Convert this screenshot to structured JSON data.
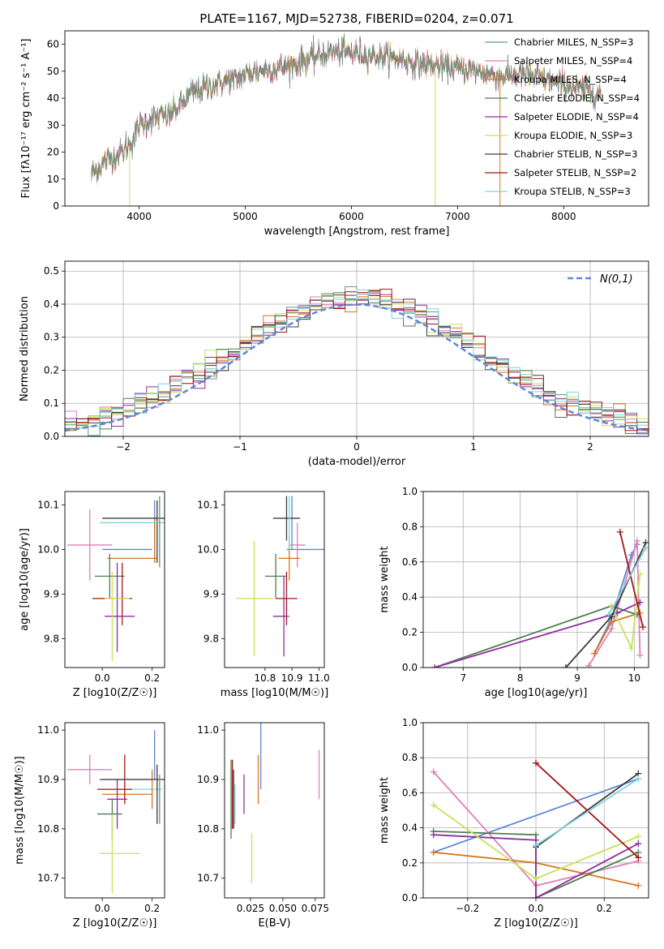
{
  "figure_title": "PLATE=1167, MJD=52738, FIBERID=0204, z=0.071",
  "colors": {
    "chabrier_miles": "#5b9f7e",
    "salpeter_miles": "#e07fb8",
    "kroupa_miles": "#d4761c",
    "chabrier_elodie": "#4f7d52",
    "salpeter_elodie": "#8f2da0",
    "kroupa_elodie": "#c6e25a",
    "chabrier_stelib": "#3d3d3d",
    "salpeter_stelib": "#a41616",
    "kroupa_stelib": "#7fd2dc",
    "extra_blue": "#5f86d6",
    "normal_curve": "#5f86d6"
  },
  "chart_data": [
    {
      "type": "line",
      "id": "spectrum",
      "xlabel": "wavelength [Angstrom, rest frame]",
      "ylabel": "Flux [fλ10⁻¹⁷ erg cm⁻² s⁻¹ A⁻¹]",
      "xlim": [
        3300,
        8800
      ],
      "ylim": [
        0,
        65
      ],
      "xticks": [
        4000,
        5000,
        6000,
        7000,
        8000
      ],
      "yticks": [
        0,
        10,
        20,
        30,
        40,
        50,
        60
      ],
      "x_range": [
        3550,
        8350
      ],
      "continuum_points": [
        [
          3550,
          12
        ],
        [
          3700,
          17
        ],
        [
          3850,
          20
        ],
        [
          3950,
          25
        ],
        [
          4000,
          30
        ],
        [
          4100,
          32
        ],
        [
          4300,
          34
        ],
        [
          4500,
          42
        ],
        [
          4700,
          45
        ],
        [
          4900,
          47
        ],
        [
          5100,
          50
        ],
        [
          5300,
          51
        ],
        [
          5500,
          53
        ],
        [
          5700,
          56
        ],
        [
          5800,
          57
        ],
        [
          6000,
          57
        ],
        [
          6200,
          56
        ],
        [
          6400,
          55
        ],
        [
          6600,
          53
        ],
        [
          6800,
          52
        ],
        [
          7000,
          51
        ],
        [
          7200,
          50
        ],
        [
          7400,
          48
        ],
        [
          7600,
          49
        ],
        [
          7800,
          47
        ],
        [
          8000,
          45
        ],
        [
          8200,
          43
        ],
        [
          8350,
          42
        ]
      ],
      "legend": [
        {
          "label": "Chabrier MILES, N_SSP=3",
          "color_key": "chabrier_miles"
        },
        {
          "label": "Salpeter MILES, N_SSP=4",
          "color_key": "salpeter_miles"
        },
        {
          "label": "Kroupa MILES, N_SSP=4",
          "color_key": "kroupa_miles"
        },
        {
          "label": "Chabrier ELODIE, N_SSP=4",
          "color_key": "chabrier_elodie"
        },
        {
          "label": "Salpeter ELODIE, N_SSP=4",
          "color_key": "salpeter_elodie"
        },
        {
          "label": "Kroupa ELODIE, N_SSP=3",
          "color_key": "kroupa_elodie"
        },
        {
          "label": "Chabrier STELIB, N_SSP=3",
          "color_key": "chabrier_stelib"
        },
        {
          "label": "Salpeter STELIB, N_SSP=2",
          "color_key": "salpeter_stelib"
        },
        {
          "label": "Kroupa STELIB, N_SSP=3",
          "color_key": "kroupa_stelib"
        }
      ]
    },
    {
      "type": "histogram",
      "id": "residuals",
      "xlabel": "(data-model)/error",
      "ylabel": "Normed distribution",
      "xlim": [
        -2.5,
        2.5
      ],
      "ylim": [
        0,
        0.53
      ],
      "xticks": [
        -2,
        -1,
        0,
        1,
        2
      ],
      "yticks": [
        0.0,
        0.1,
        0.2,
        0.3,
        0.4,
        0.5
      ],
      "grid": true,
      "bin_width": 0.1,
      "normal_label": "N(0,1)",
      "legend_position": "top-right"
    },
    {
      "type": "scatter",
      "id": "age_vs_Z",
      "xlabel": "Z [log10(Z/Z☉)]",
      "ylabel": "age [log10(age/yr)]",
      "xlim": [
        -0.15,
        0.25
      ],
      "ylim": [
        9.735,
        10.13
      ],
      "xticks": [
        0.0,
        0.2
      ],
      "yticks": [
        9.8,
        9.9,
        10.0,
        10.1
      ],
      "points": [
        {
          "x": 0.21,
          "y": 10.04,
          "xerr": 0.0,
          "yerr": 0.07,
          "color_key": "extra_blue"
        },
        {
          "x": -0.05,
          "y": 10.01,
          "xerr": 0.09,
          "yerr": 0.08,
          "color_key": "salpeter_miles"
        },
        {
          "x": 0.1,
          "y": 10.0,
          "xerr": 0.1,
          "yerr": 0.0,
          "color_key": "extra_blue"
        },
        {
          "x": 0.12,
          "y": 9.98,
          "xerr": 0.1,
          "yerr": 0.0,
          "color_key": "kroupa_miles"
        },
        {
          "x": 0.21,
          "y": 10.02,
          "xerr": 0.0,
          "yerr": 0.05,
          "color_key": "kroupa_miles"
        },
        {
          "x": 0.03,
          "y": 9.94,
          "xerr": 0.06,
          "yerr": 0.05,
          "color_key": "chabrier_elodie"
        },
        {
          "x": 0.06,
          "y": 9.87,
          "xerr": 0.0,
          "yerr": 0.1,
          "color_key": "salpeter_elodie"
        },
        {
          "x": 0.04,
          "y": 9.89,
          "xerr": 0.08,
          "yerr": 0.0,
          "color_key": "salpeter_stelib"
        },
        {
          "x": 0.08,
          "y": 9.9,
          "xerr": 0.0,
          "yerr": 0.07,
          "color_key": "salpeter_stelib"
        },
        {
          "x": 0.07,
          "y": 9.85,
          "xerr": 0.06,
          "yerr": 0.0,
          "color_key": "salpeter_elodie"
        },
        {
          "x": 0.06,
          "y": 9.89,
          "xerr": 0.05,
          "yerr": 0.0,
          "color_key": "kroupa_elodie"
        },
        {
          "x": 0.04,
          "y": 9.85,
          "xerr": 0.0,
          "yerr": 0.1,
          "color_key": "kroupa_elodie"
        },
        {
          "x": 0.13,
          "y": 10.07,
          "xerr": 0.13,
          "yerr": 0.0,
          "color_key": "chabrier_stelib"
        },
        {
          "x": 0.22,
          "y": 10.04,
          "xerr": 0.0,
          "yerr": 0.07,
          "color_key": "chabrier_stelib"
        },
        {
          "x": 0.12,
          "y": 10.06,
          "xerr": 0.13,
          "yerr": 0.0,
          "color_key": "kroupa_stelib"
        },
        {
          "x": 0.23,
          "y": 10.04,
          "xerr": 0.0,
          "yerr": 0.08,
          "color_key": "chabrier_miles"
        }
      ]
    },
    {
      "type": "scatter",
      "id": "age_vs_mass",
      "xlabel": "mass [log10(M/M☉)]",
      "ylabel": "",
      "xlim": [
        10.65,
        11.02
      ],
      "ylim": [
        9.735,
        10.13
      ],
      "xticks": [
        10.8,
        10.9,
        11.0
      ],
      "yticks": [
        9.8,
        9.9,
        10.0,
        10.1
      ],
      "points": [
        {
          "x": 10.9,
          "y": 10.06,
          "xerr": 0.0,
          "yerr": 0.06,
          "color_key": "extra_blue"
        },
        {
          "x": 10.95,
          "y": 10.0,
          "xerr": 0.07,
          "yerr": 0.0,
          "color_key": "extra_blue"
        },
        {
          "x": 10.92,
          "y": 10.01,
          "xerr": 0.03,
          "yerr": 0.05,
          "color_key": "salpeter_miles"
        },
        {
          "x": 10.89,
          "y": 9.98,
          "xerr": 0.04,
          "yerr": 0.05,
          "color_key": "kroupa_miles"
        },
        {
          "x": 10.84,
          "y": 9.94,
          "xerr": 0.04,
          "yerr": 0.05,
          "color_key": "chabrier_elodie"
        },
        {
          "x": 10.88,
          "y": 9.89,
          "xerr": 0.04,
          "yerr": 0.06,
          "color_key": "salpeter_stelib"
        },
        {
          "x": 10.86,
          "y": 9.85,
          "xerr": 0.03,
          "yerr": 0.0,
          "color_key": "salpeter_elodie"
        },
        {
          "x": 10.87,
          "y": 9.85,
          "xerr": 0.0,
          "yerr": 0.09,
          "color_key": "salpeter_elodie"
        },
        {
          "x": 10.76,
          "y": 9.89,
          "xerr": 0.07,
          "yerr": 0.13,
          "color_key": "kroupa_elodie"
        },
        {
          "x": 10.88,
          "y": 10.07,
          "xerr": 0.05,
          "yerr": 0.05,
          "color_key": "chabrier_stelib"
        },
        {
          "x": 10.89,
          "y": 10.06,
          "xerr": 0.0,
          "yerr": 0.06,
          "color_key": "kroupa_stelib"
        }
      ]
    },
    {
      "type": "line",
      "id": "weight_vs_age",
      "xlabel": "age [log10(age/yr)]",
      "ylabel": "mass weight",
      "xlim": [
        6.3,
        10.25
      ],
      "ylim": [
        0.0,
        1.0
      ],
      "xticks": [
        7,
        8,
        9,
        10
      ],
      "yticks": [
        0.0,
        0.2,
        0.4,
        0.6,
        0.8,
        1.0
      ],
      "grid": true,
      "series": [
        {
          "color_key": "extra_blue",
          "points": [
            [
              9.3,
              0.08
            ],
            [
              9.6,
              0.28
            ],
            [
              9.95,
              0.64
            ],
            [
              10.05,
              0.7
            ]
          ]
        },
        {
          "color_key": "salpeter_miles",
          "points": [
            [
              9.2,
              0.01
            ],
            [
              9.6,
              0.22
            ],
            [
              10.05,
              0.72
            ],
            [
              10.1,
              0.07
            ]
          ]
        },
        {
          "color_key": "kroupa_miles",
          "points": [
            [
              9.3,
              0.08
            ],
            [
              9.6,
              0.26
            ],
            [
              10.1,
              0.31
            ]
          ]
        },
        {
          "color_key": "chabrier_elodie",
          "points": [
            [
              6.5,
              0.0
            ],
            [
              9.6,
              0.35
            ],
            [
              10.05,
              0.3
            ]
          ]
        },
        {
          "color_key": "salpeter_elodie",
          "points": [
            [
              6.5,
              0.0
            ],
            [
              9.7,
              0.31
            ],
            [
              10.1,
              0.37
            ]
          ]
        },
        {
          "color_key": "kroupa_elodie",
          "points": [
            [
              9.6,
              0.35
            ],
            [
              9.95,
              0.11
            ],
            [
              10.1,
              0.53
            ]
          ]
        },
        {
          "color_key": "chabrier_stelib",
          "points": [
            [
              8.8,
              0.0
            ],
            [
              9.6,
              0.29
            ],
            [
              10.2,
              0.71
            ]
          ]
        },
        {
          "color_key": "salpeter_stelib",
          "points": [
            [
              9.75,
              0.77
            ],
            [
              10.15,
              0.23
            ]
          ]
        },
        {
          "color_key": "kroupa_stelib",
          "points": [
            [
              9.55,
              0.3
            ],
            [
              10.2,
              0.68
            ]
          ]
        }
      ]
    },
    {
      "type": "scatter",
      "id": "mass_vs_Z",
      "xlabel": "Z [log10(Z/Z☉)]",
      "ylabel": "mass [log10(M/M☉)]",
      "xlim": [
        -0.15,
        0.25
      ],
      "ylim": [
        10.66,
        11.015
      ],
      "xticks": [
        0.0,
        0.2
      ],
      "yticks": [
        10.7,
        10.8,
        10.9,
        11.0
      ],
      "points": [
        {
          "x": -0.05,
          "y": 10.92,
          "xerr": 0.09,
          "yerr": 0.03,
          "color_key": "salpeter_miles"
        },
        {
          "x": 0.21,
          "y": 10.95,
          "xerr": 0.0,
          "yerr": 0.05,
          "color_key": "extra_blue"
        },
        {
          "x": 0.1,
          "y": 10.9,
          "xerr": 0.1,
          "yerr": 0.0,
          "color_key": "extra_blue"
        },
        {
          "x": 0.12,
          "y": 10.88,
          "xerr": 0.12,
          "yerr": 0.0,
          "color_key": "kroupa_stelib"
        },
        {
          "x": 0.1,
          "y": 10.87,
          "xerr": 0.1,
          "yerr": 0.0,
          "color_key": "kroupa_miles"
        },
        {
          "x": 0.2,
          "y": 10.88,
          "xerr": 0.0,
          "yerr": 0.04,
          "color_key": "kroupa_miles"
        },
        {
          "x": 0.05,
          "y": 10.88,
          "xerr": 0.07,
          "yerr": 0.0,
          "color_key": "salpeter_stelib"
        },
        {
          "x": 0.09,
          "y": 10.9,
          "xerr": 0.0,
          "yerr": 0.05,
          "color_key": "salpeter_stelib"
        },
        {
          "x": 0.06,
          "y": 10.86,
          "xerr": 0.04,
          "yerr": 0.0,
          "color_key": "salpeter_elodie"
        },
        {
          "x": 0.06,
          "y": 10.85,
          "xerr": 0.0,
          "yerr": 0.05,
          "color_key": "salpeter_elodie"
        },
        {
          "x": 0.03,
          "y": 10.83,
          "xerr": 0.05,
          "yerr": 0.0,
          "color_key": "chabrier_elodie"
        },
        {
          "x": 0.04,
          "y": 10.82,
          "xerr": 0.0,
          "yerr": 0.04,
          "color_key": "chabrier_elodie"
        },
        {
          "x": 0.07,
          "y": 10.75,
          "xerr": 0.08,
          "yerr": 0.0,
          "color_key": "kroupa_elodie"
        },
        {
          "x": 0.04,
          "y": 10.75,
          "xerr": 0.0,
          "yerr": 0.08,
          "color_key": "kroupa_elodie"
        },
        {
          "x": 0.12,
          "y": 10.9,
          "xerr": 0.13,
          "yerr": 0.0,
          "color_key": "chabrier_stelib"
        },
        {
          "x": 0.22,
          "y": 10.87,
          "xerr": 0.0,
          "yerr": 0.06,
          "color_key": "chabrier_stelib"
        },
        {
          "x": 0.23,
          "y": 10.86,
          "xerr": 0.0,
          "yerr": 0.05,
          "color_key": "chabrier_miles"
        }
      ]
    },
    {
      "type": "scatter",
      "id": "mass_vs_ebv",
      "xlabel": "E(B-V)",
      "ylabel": "",
      "xlim": [
        0.005,
        0.082
      ],
      "ylim": [
        10.66,
        11.015
      ],
      "xticks": [
        0.025,
        0.05,
        0.075
      ],
      "xtick_labels": [
        "0.025",
        "0.050",
        "0.075"
      ],
      "yticks": [
        10.7,
        10.8,
        10.9,
        11.0
      ],
      "points": [
        {
          "x": 0.01,
          "y": 10.86,
          "xerr": 0.0,
          "yerr": 0.08,
          "color_key": "chabrier_elodie"
        },
        {
          "x": 0.011,
          "y": 10.87,
          "xerr": 0.0,
          "yerr": 0.07,
          "color_key": "salpeter_stelib"
        },
        {
          "x": 0.012,
          "y": 10.86,
          "xerr": 0.0,
          "yerr": 0.06,
          "color_key": "chabrier_stelib"
        },
        {
          "x": 0.013,
          "y": 10.85,
          "xerr": 0.0,
          "yerr": 0.04,
          "color_key": "kroupa_stelib"
        },
        {
          "x": 0.02,
          "y": 10.87,
          "xerr": 0.0,
          "yerr": 0.04,
          "color_key": "salpeter_elodie"
        },
        {
          "x": 0.026,
          "y": 10.74,
          "xerr": 0.0,
          "yerr": 0.05,
          "color_key": "kroupa_elodie"
        },
        {
          "x": 0.031,
          "y": 10.9,
          "xerr": 0.0,
          "yerr": 0.05,
          "color_key": "kroupa_miles"
        },
        {
          "x": 0.033,
          "y": 10.95,
          "xerr": 0.0,
          "yerr": 0.07,
          "color_key": "extra_blue"
        },
        {
          "x": 0.078,
          "y": 10.91,
          "xerr": 0.0,
          "yerr": 0.05,
          "color_key": "salpeter_miles"
        }
      ]
    },
    {
      "type": "line",
      "id": "weight_vs_Z",
      "xlabel": "Z [log10(Z/Z☉)]",
      "ylabel": "mass weight",
      "xlim": [
        -0.33,
        0.33
      ],
      "ylim": [
        0.0,
        1.0
      ],
      "xticks": [
        -0.2,
        0.0,
        0.2
      ],
      "xtick_labels": [
        "−0.2",
        "0.0",
        "0.2"
      ],
      "yticks": [
        0.0,
        0.2,
        0.4,
        0.6,
        0.8,
        1.0
      ],
      "grid": true,
      "series": [
        {
          "color_key": "extra_blue",
          "points": [
            [
              -0.3,
              0.26
            ],
            [
              0.3,
              0.68
            ]
          ]
        },
        {
          "color_key": "salpeter_miles",
          "points": [
            [
              -0.3,
              0.72
            ],
            [
              0.0,
              0.07
            ],
            [
              0.3,
              0.21
            ]
          ]
        },
        {
          "color_key": "kroupa_miles",
          "points": [
            [
              -0.3,
              0.26
            ],
            [
              0.0,
              0.2
            ],
            [
              0.3,
              0.07
            ]
          ]
        },
        {
          "color_key": "chabrier_elodie",
          "points": [
            [
              -0.3,
              0.38
            ],
            [
              0.0,
              0.36
            ],
            [
              0.0,
              0.0
            ],
            [
              0.3,
              0.26
            ]
          ]
        },
        {
          "color_key": "salpeter_elodie",
          "points": [
            [
              -0.3,
              0.36
            ],
            [
              0.0,
              0.33
            ],
            [
              0.0,
              0.0
            ],
            [
              0.3,
              0.31
            ]
          ]
        },
        {
          "color_key": "kroupa_elodie",
          "points": [
            [
              -0.3,
              0.53
            ],
            [
              0.0,
              0.11
            ],
            [
              0.3,
              0.35
            ]
          ]
        },
        {
          "color_key": "chabrier_stelib",
          "points": [
            [
              0.0,
              0.29
            ],
            [
              0.3,
              0.71
            ]
          ]
        },
        {
          "color_key": "salpeter_stelib",
          "points": [
            [
              0.0,
              0.77
            ],
            [
              0.3,
              0.23
            ]
          ]
        },
        {
          "color_key": "kroupa_stelib",
          "points": [
            [
              0.0,
              0.3
            ],
            [
              0.3,
              0.68
            ]
          ]
        }
      ]
    }
  ]
}
